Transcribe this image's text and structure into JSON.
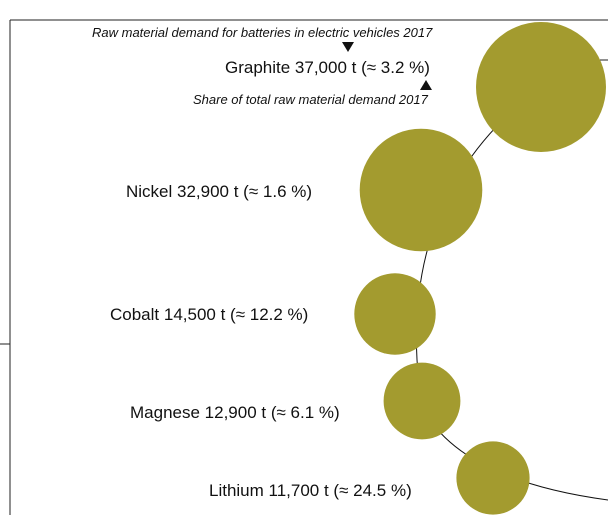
{
  "chart_data": {
    "type": "bubble",
    "annotations": {
      "top": "Raw material demand for batteries in electric vehicles 2017",
      "bottom": "Share of total raw material demand 2017"
    },
    "unit": "t",
    "items": [
      {
        "label": "Graphite 37,000 t (≈ 3.2 %)",
        "material": "Graphite",
        "demand_t": 37000,
        "share_pct": 3.2
      },
      {
        "label": "Nickel 32,900 t (≈ 1.6 %)",
        "material": "Nickel",
        "demand_t": 32900,
        "share_pct": 1.6
      },
      {
        "label": "Cobalt 14,500 t (≈ 12.2 %)",
        "material": "Cobalt",
        "demand_t": 14500,
        "share_pct": 12.2
      },
      {
        "label": "Magnese 12,900 t (≈ 6.1 %)",
        "material": "Magnese",
        "demand_t": 12900,
        "share_pct": 6.1
      },
      {
        "label": "Lithium 11,700 t (≈ 24.5 %)",
        "material": "Lithium",
        "demand_t": 11700,
        "share_pct": 24.5
      }
    ],
    "bubble_color": "#a39b2f",
    "line_color": "#111111"
  }
}
